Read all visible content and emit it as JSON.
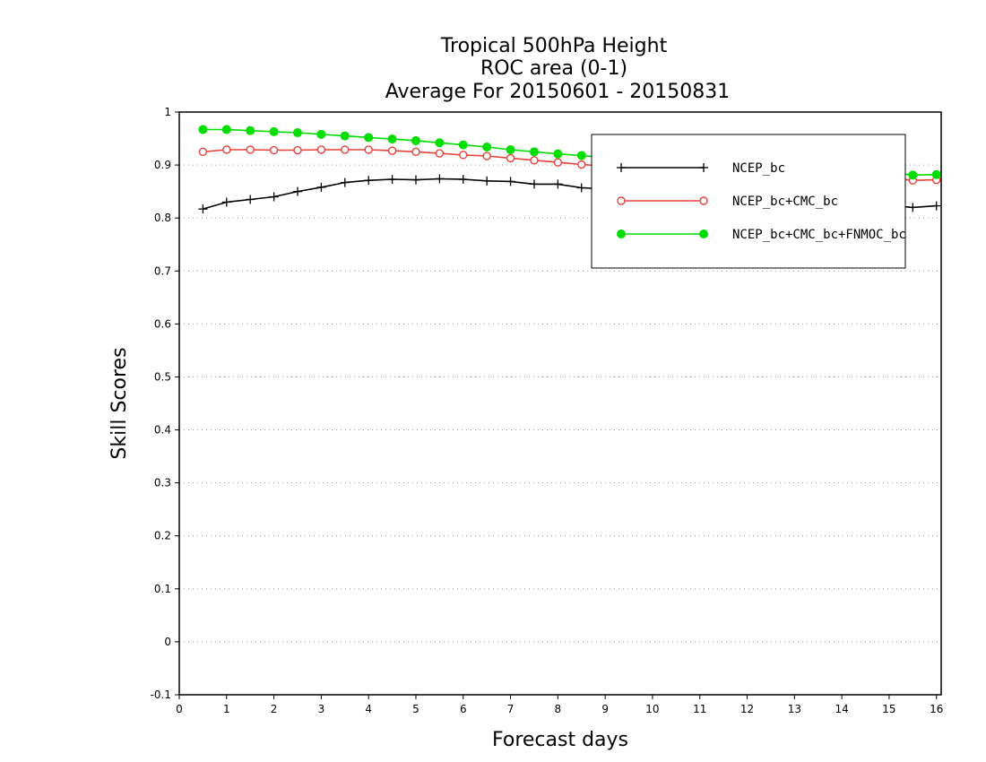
{
  "chart_data": {
    "type": "line",
    "title": [
      "Tropical 500hPa Height",
      "ROC area (0-1)",
      "Average For 20150601 - 20150831"
    ],
    "xlabel": "Forecast days",
    "ylabel": "Skill Scores",
    "xlim": [
      0,
      16.1
    ],
    "ylim": [
      -0.1,
      1
    ],
    "x_ticks": [
      0,
      1,
      2,
      3,
      4,
      5,
      6,
      7,
      8,
      9,
      10,
      11,
      12,
      13,
      14,
      15,
      16
    ],
    "y_ticks": [
      -0.1,
      0,
      0.1,
      0.2,
      0.3,
      0.4,
      0.5,
      0.6,
      0.7,
      0.8,
      0.9,
      1
    ],
    "y_tick_labels": [
      "-0.1",
      "0",
      "0.1",
      "0.2",
      "0.3",
      "0.4",
      "0.5",
      "0.6",
      "0.7",
      "0.8",
      "0.9",
      "1"
    ],
    "grid": "horizontal dotted",
    "legend_position": "top-right",
    "x": [
      0.5,
      1,
      1.5,
      2,
      2.5,
      3,
      3.5,
      4,
      4.5,
      5,
      5.5,
      6,
      6.5,
      7,
      7.5,
      8,
      8.5,
      9,
      9.5,
      10,
      10.5,
      11,
      11.5,
      12,
      12.5,
      13,
      13.5,
      14,
      14.5,
      15,
      15.5,
      16
    ],
    "series": [
      {
        "name": "NCEP_bc",
        "color": "#000000",
        "marker": "plus",
        "values": [
          0.817,
          0.83,
          0.835,
          0.84,
          0.85,
          0.858,
          0.867,
          0.871,
          0.873,
          0.872,
          0.874,
          0.873,
          0.87,
          0.869,
          0.864,
          0.864,
          0.857,
          0.855,
          0.852,
          0.85,
          0.848,
          0.845,
          0.843,
          0.84,
          0.838,
          0.835,
          0.833,
          0.83,
          0.828,
          0.824,
          0.82,
          0.823
        ]
      },
      {
        "name": "NCEP_bc+CMC_bc",
        "color": "#e8403a",
        "marker": "open-circle",
        "values": [
          0.925,
          0.929,
          0.929,
          0.928,
          0.928,
          0.929,
          0.929,
          0.929,
          0.927,
          0.925,
          0.922,
          0.919,
          0.917,
          0.913,
          0.909,
          0.905,
          0.901,
          0.898,
          0.896,
          0.894,
          0.892,
          0.89,
          0.889,
          0.888,
          0.886,
          0.884,
          0.882,
          0.88,
          0.878,
          0.876,
          0.871,
          0.872
        ]
      },
      {
        "name": "NCEP_bc+CMC_bc+FNMOC_bc",
        "color": "#00dd00",
        "marker": "filled-circle",
        "values": [
          0.967,
          0.967,
          0.965,
          0.963,
          0.961,
          0.958,
          0.955,
          0.952,
          0.949,
          0.946,
          0.942,
          0.938,
          0.934,
          0.929,
          0.925,
          0.921,
          0.918,
          0.914,
          0.911,
          0.908,
          0.905,
          0.903,
          0.9,
          0.898,
          0.896,
          0.894,
          0.892,
          0.89,
          0.888,
          0.886,
          0.881,
          0.882
        ]
      }
    ]
  }
}
